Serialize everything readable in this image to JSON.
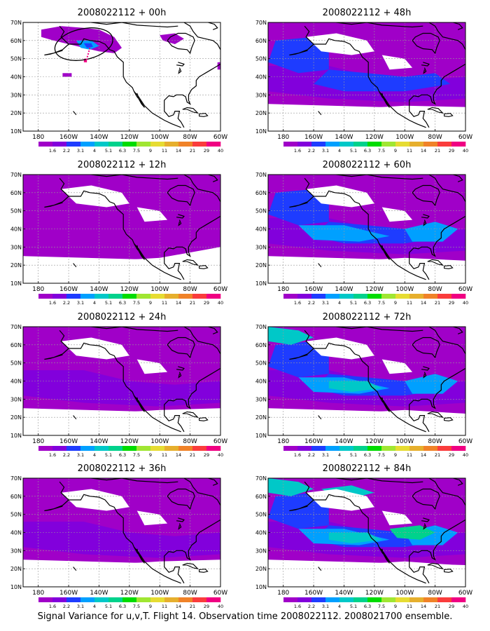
{
  "run_label": "2008022112",
  "caption": "Signal Variance for u,v,T. Flight 14. Observation time 2008022112. 2008021700 ensemble.",
  "lat_ticks": [
    "70N",
    "60N",
    "50N",
    "40N",
    "30N",
    "20N",
    "10N"
  ],
  "lon_ticks": [
    "180",
    "160W",
    "140W",
    "120W",
    "100W",
    "80W",
    "60W"
  ],
  "colorbar": {
    "labels": [
      "1.6",
      "2.2",
      "3.1",
      "4",
      "5.1",
      "6.3",
      "7.5",
      "9",
      "11",
      "14",
      "21",
      "29",
      "40"
    ],
    "colors": [
      "#a000c8",
      "#8200dc",
      "#1e3cff",
      "#00a0ff",
      "#00c8c8",
      "#00d28c",
      "#00dc00",
      "#a0e632",
      "#e6dc32",
      "#e6af2d",
      "#f08228",
      "#fa3c3c",
      "#f00082"
    ]
  },
  "panels": [
    {
      "title": "2008022112 + 00h",
      "intensity": 0
    },
    {
      "title": "2008022112 + 48h",
      "intensity": 3
    },
    {
      "title": "2008022112 + 12h",
      "intensity": 1
    },
    {
      "title": "2008022112 + 60h",
      "intensity": 4
    },
    {
      "title": "2008022112 + 24h",
      "intensity": 2
    },
    {
      "title": "2008022112 + 72h",
      "intensity": 5
    },
    {
      "title": "2008022112 + 36h",
      "intensity": 2
    },
    {
      "title": "2008022112 + 84h",
      "intensity": 6
    }
  ]
}
